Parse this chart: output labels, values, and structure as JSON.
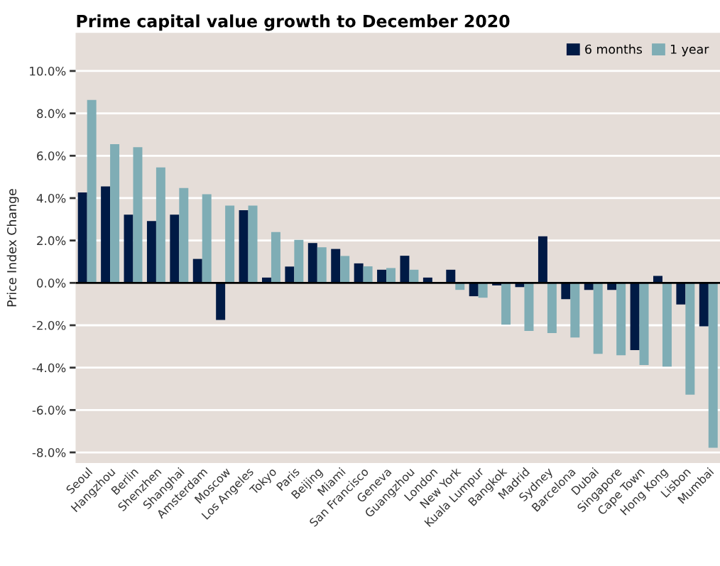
{
  "chart_data": {
    "type": "bar",
    "title": "Prime capital value growth to December 2020",
    "ylabel": "Price Index Change",
    "categories": [
      "Seoul",
      "Hangzhou",
      "Berlin",
      "Shenzhen",
      "Shanghai",
      "Amsterdam",
      "Moscow",
      "Los Angeles",
      "Tokyo",
      "Paris",
      "Beijing",
      "Miami",
      "San Francisco",
      "Geneva",
      "Guangzhou",
      "London",
      "New York",
      "Kuala Lumpur",
      "Bangkok",
      "Madrid",
      "Sydney",
      "Barcelona",
      "Dubai",
      "Singapore",
      "Cape Town",
      "Hong Kong",
      "Lisbon",
      "Mumbai"
    ],
    "series": [
      {
        "name": "6 months",
        "color": "#001a45",
        "values": [
          4.27,
          4.55,
          3.22,
          2.92,
          3.22,
          1.13,
          -1.75,
          3.43,
          0.25,
          0.77,
          1.88,
          1.6,
          0.92,
          0.62,
          1.28,
          0.25,
          0.62,
          -0.63,
          -0.12,
          -0.2,
          2.2,
          -0.77,
          -0.33,
          -0.33,
          -3.17,
          0.33,
          -1.02,
          -2.05
        ]
      },
      {
        "name": "1 year",
        "color": "#7fadb5",
        "values": [
          8.63,
          6.55,
          6.4,
          5.45,
          4.48,
          4.18,
          3.65,
          3.65,
          2.4,
          2.03,
          1.68,
          1.27,
          0.78,
          0.7,
          0.62,
          0,
          -0.33,
          -0.7,
          -1.97,
          -2.27,
          -2.37,
          -2.58,
          -3.35,
          -3.42,
          -3.88,
          -3.95,
          -5.28,
          -7.78
        ]
      }
    ],
    "ylim": [
      -8.5,
      11.8
    ],
    "yticks": [
      {
        "value": -8,
        "label": "-8.0%"
      },
      {
        "value": -6,
        "label": "-6.0%"
      },
      {
        "value": -4,
        "label": "-4.0%"
      },
      {
        "value": -2,
        "label": "-2.0%"
      },
      {
        "value": 0,
        "label": "0.0%"
      },
      {
        "value": 2,
        "label": "2.0%"
      },
      {
        "value": 4,
        "label": "4.0%"
      },
      {
        "value": 6,
        "label": "6.0%"
      },
      {
        "value": 8,
        "label": "8.0%"
      },
      {
        "value": 10,
        "label": "10.0%"
      }
    ],
    "grid": "y",
    "legend": "top right"
  }
}
